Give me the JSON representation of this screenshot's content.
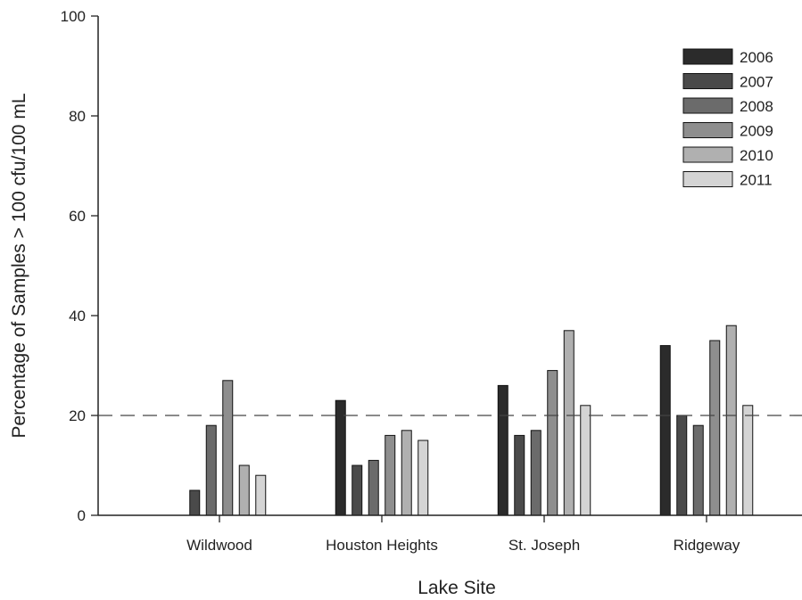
{
  "chart_data": {
    "type": "bar",
    "title": "",
    "xlabel": "Lake Site",
    "ylabel": "Percentage of Samples > 100 cfu/100 mL",
    "ylim": [
      0,
      100
    ],
    "yticks": [
      "0",
      "20",
      "40",
      "60",
      "80",
      "100"
    ],
    "categories": [
      "Wildwood",
      "Houston Heights",
      "St. Joseph",
      "Ridgeway"
    ],
    "series": [
      {
        "name": "2006",
        "color": "#2b2b2b",
        "values": [
          0,
          23,
          26,
          34
        ]
      },
      {
        "name": "2007",
        "color": "#4a4a4a",
        "values": [
          5,
          10,
          16,
          20
        ]
      },
      {
        "name": "2008",
        "color": "#6b6b6b",
        "values": [
          18,
          11,
          17,
          18
        ]
      },
      {
        "name": "2009",
        "color": "#8e8e8e",
        "values": [
          27,
          16,
          29,
          35
        ]
      },
      {
        "name": "2010",
        "color": "#b0b0b0",
        "values": [
          10,
          17,
          37,
          38
        ]
      },
      {
        "name": "2011",
        "color": "#d4d4d4",
        "values": [
          8,
          15,
          22,
          22
        ]
      }
    ],
    "reference_line": {
      "value": 20,
      "style": "dashed"
    },
    "legend_position": "top-right",
    "grid": false
  }
}
